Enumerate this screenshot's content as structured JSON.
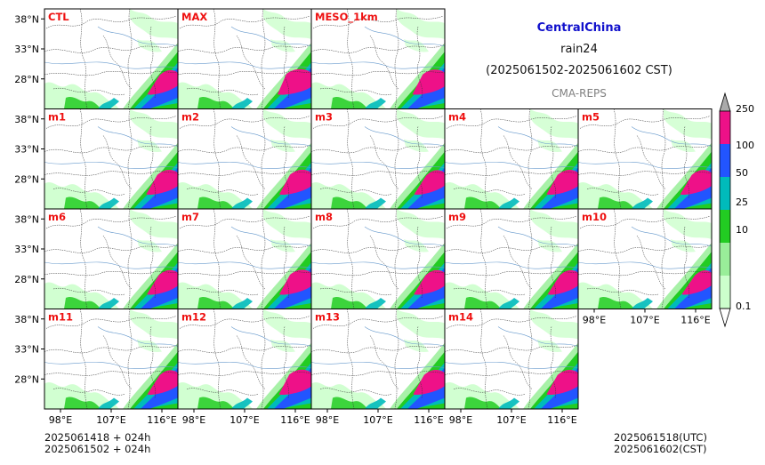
{
  "header": {
    "title": "CentralChina",
    "subtitle": "rain24",
    "period": "(2025061502-2025061602 CST)",
    "source": "CMA-REPS"
  },
  "colors": {
    "title": "#1111cc",
    "panel_label": "#ee1111",
    "source": "#808080",
    "frame": "#000000"
  },
  "panels": [
    {
      "label": "CTL",
      "row": 0,
      "col": 0,
      "intensity": 0.55
    },
    {
      "label": "MAX",
      "row": 0,
      "col": 1,
      "intensity": 1.0
    },
    {
      "label": "MESO_1km",
      "row": 0,
      "col": 2,
      "intensity": 0.8
    },
    {
      "label": "m1",
      "row": 1,
      "col": 0,
      "intensity": 0.7
    },
    {
      "label": "m2",
      "row": 1,
      "col": 1,
      "intensity": 0.75
    },
    {
      "label": "m3",
      "row": 1,
      "col": 2,
      "intensity": 0.55
    },
    {
      "label": "m4",
      "row": 1,
      "col": 3,
      "intensity": 0.7
    },
    {
      "label": "m5",
      "row": 1,
      "col": 4,
      "intensity": 0.65
    },
    {
      "label": "m6",
      "row": 2,
      "col": 0,
      "intensity": 0.6
    },
    {
      "label": "m7",
      "row": 2,
      "col": 1,
      "intensity": 0.75
    },
    {
      "label": "m8",
      "row": 2,
      "col": 2,
      "intensity": 0.6
    },
    {
      "label": "m9",
      "row": 2,
      "col": 3,
      "intensity": 0.55
    },
    {
      "label": "m10",
      "row": 2,
      "col": 4,
      "intensity": 0.45
    },
    {
      "label": "m11",
      "row": 3,
      "col": 0,
      "intensity": 0.55
    },
    {
      "label": "m12",
      "row": 3,
      "col": 1,
      "intensity": 0.8
    },
    {
      "label": "m13",
      "row": 3,
      "col": 2,
      "intensity": 0.7
    },
    {
      "label": "m14",
      "row": 3,
      "col": 3,
      "intensity": 0.7
    }
  ],
  "lat_ticks": [
    "38°N",
    "33°N",
    "28°N"
  ],
  "lon_ticks": [
    "98°E",
    "107°E",
    "116°E"
  ],
  "colorbar": {
    "levels": [
      "0.1",
      "10",
      "25",
      "50",
      "100",
      "250"
    ],
    "colors": [
      "#ccffcc",
      "#99ee99",
      "#22cc22",
      "#00bbbb",
      "#2255ff",
      "#ee1188"
    ],
    "over_color": "#aaaaaa",
    "extend": "both"
  },
  "footer": {
    "init_utc": "2025061418  +  024h",
    "init_cst": "2025061502  +  024h",
    "valid_utc": "2025061518(UTC)",
    "valid_cst": "2025061602(CST)"
  }
}
